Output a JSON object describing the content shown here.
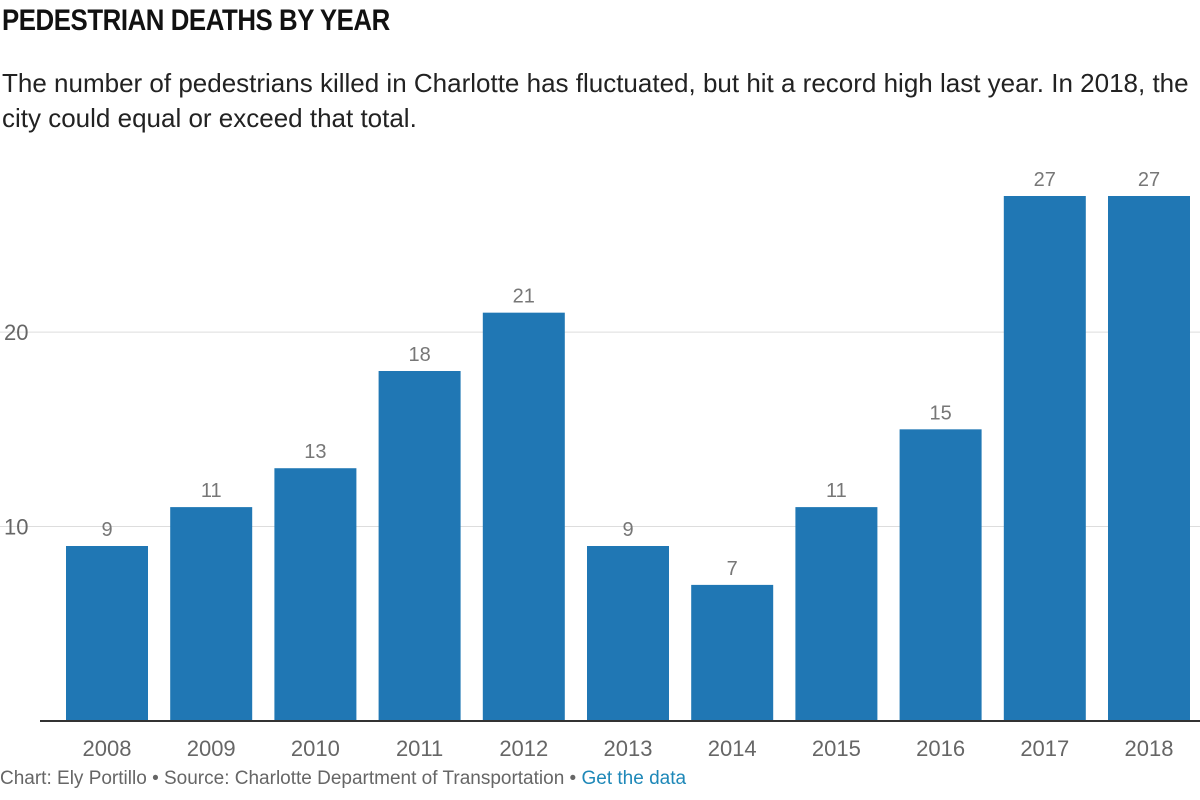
{
  "title": "PEDESTRIAN DEATHS BY YEAR",
  "subtitle": "The number of pedestrians killed in Charlotte has fluctuated, but hit a record high last year. In 2018, the city could equal or exceed that total.",
  "footer": {
    "credit": "Chart: Ely Portillo",
    "separator": "•",
    "source": "Source: Charlotte Department of Transportation",
    "link": "Get the data"
  },
  "colors": {
    "bar": "#2077b4",
    "grid": "#dddddd",
    "axis": "#333333"
  },
  "chart_data": {
    "type": "bar",
    "categories": [
      "2008",
      "2009",
      "2010",
      "2011",
      "2012",
      "2013",
      "2014",
      "2015",
      "2016",
      "2017",
      "2018"
    ],
    "values": [
      9,
      11,
      13,
      18,
      21,
      9,
      7,
      11,
      15,
      27,
      27
    ],
    "ylim": [
      0,
      27
    ],
    "yticks": [
      10,
      20
    ],
    "grid": true,
    "data_labels": true,
    "xlabel": "",
    "ylabel": ""
  }
}
